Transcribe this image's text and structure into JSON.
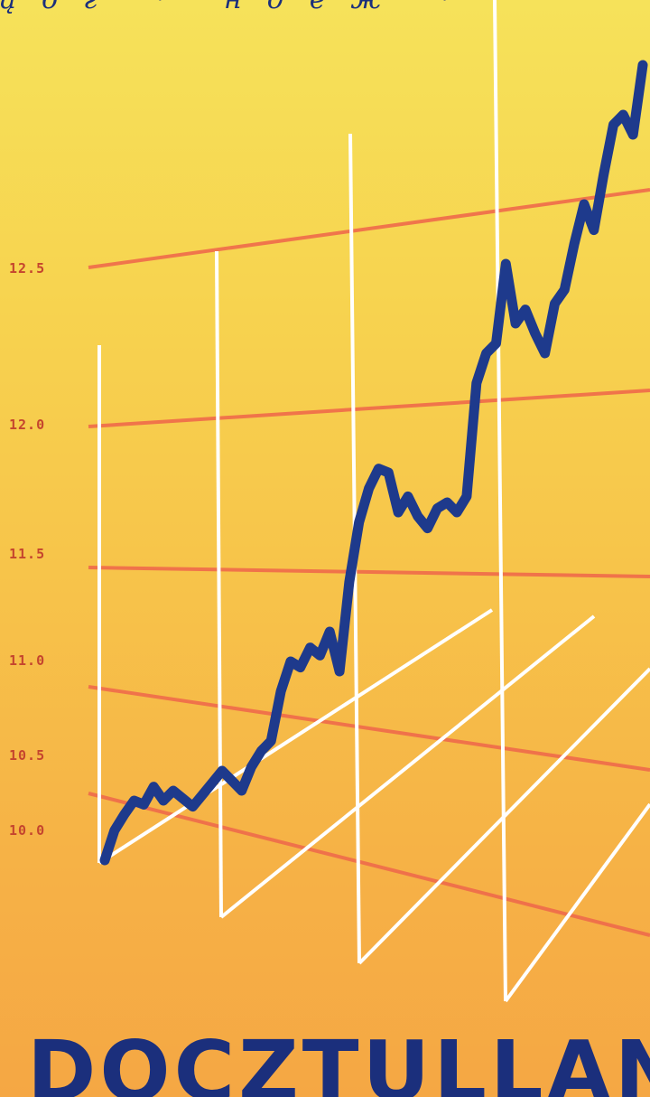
{
  "header": {
    "script_text": "ąбг · ндеж ·"
  },
  "footer": {
    "title": "DOCZTULLAN"
  },
  "chart_data": {
    "type": "line",
    "title": "",
    "xlabel": "",
    "ylabel": "",
    "grid": true,
    "ylim": [
      9.7,
      13.9
    ],
    "y_ticks": [
      "10.0",
      "10.5",
      "11.0",
      "11.5",
      "12.0",
      "12.5"
    ],
    "series": [
      {
        "color": "#1e3a8c",
        "values": [
          9.75,
          9.9,
          9.98,
          10.05,
          10.03,
          10.12,
          10.05,
          10.1,
          10.06,
          10.02,
          10.08,
          10.14,
          10.2,
          10.15,
          10.1,
          10.22,
          10.3,
          10.35,
          10.6,
          10.75,
          10.72,
          10.82,
          10.78,
          10.9,
          10.7,
          11.15,
          11.45,
          11.62,
          11.72,
          11.7,
          11.5,
          11.58,
          11.48,
          11.42,
          11.52,
          11.55,
          11.5,
          11.58,
          12.15,
          12.3,
          12.35,
          12.75,
          12.45,
          12.52,
          12.4,
          12.3,
          12.55,
          12.62,
          12.85,
          13.05,
          12.92,
          13.2,
          13.45,
          13.5,
          13.4,
          13.75
        ]
      }
    ]
  },
  "colors": {
    "line": "#1e3a8c",
    "grid": "#ee6a4a",
    "tick_text": "#c5452e",
    "frame": "#ffffff"
  }
}
